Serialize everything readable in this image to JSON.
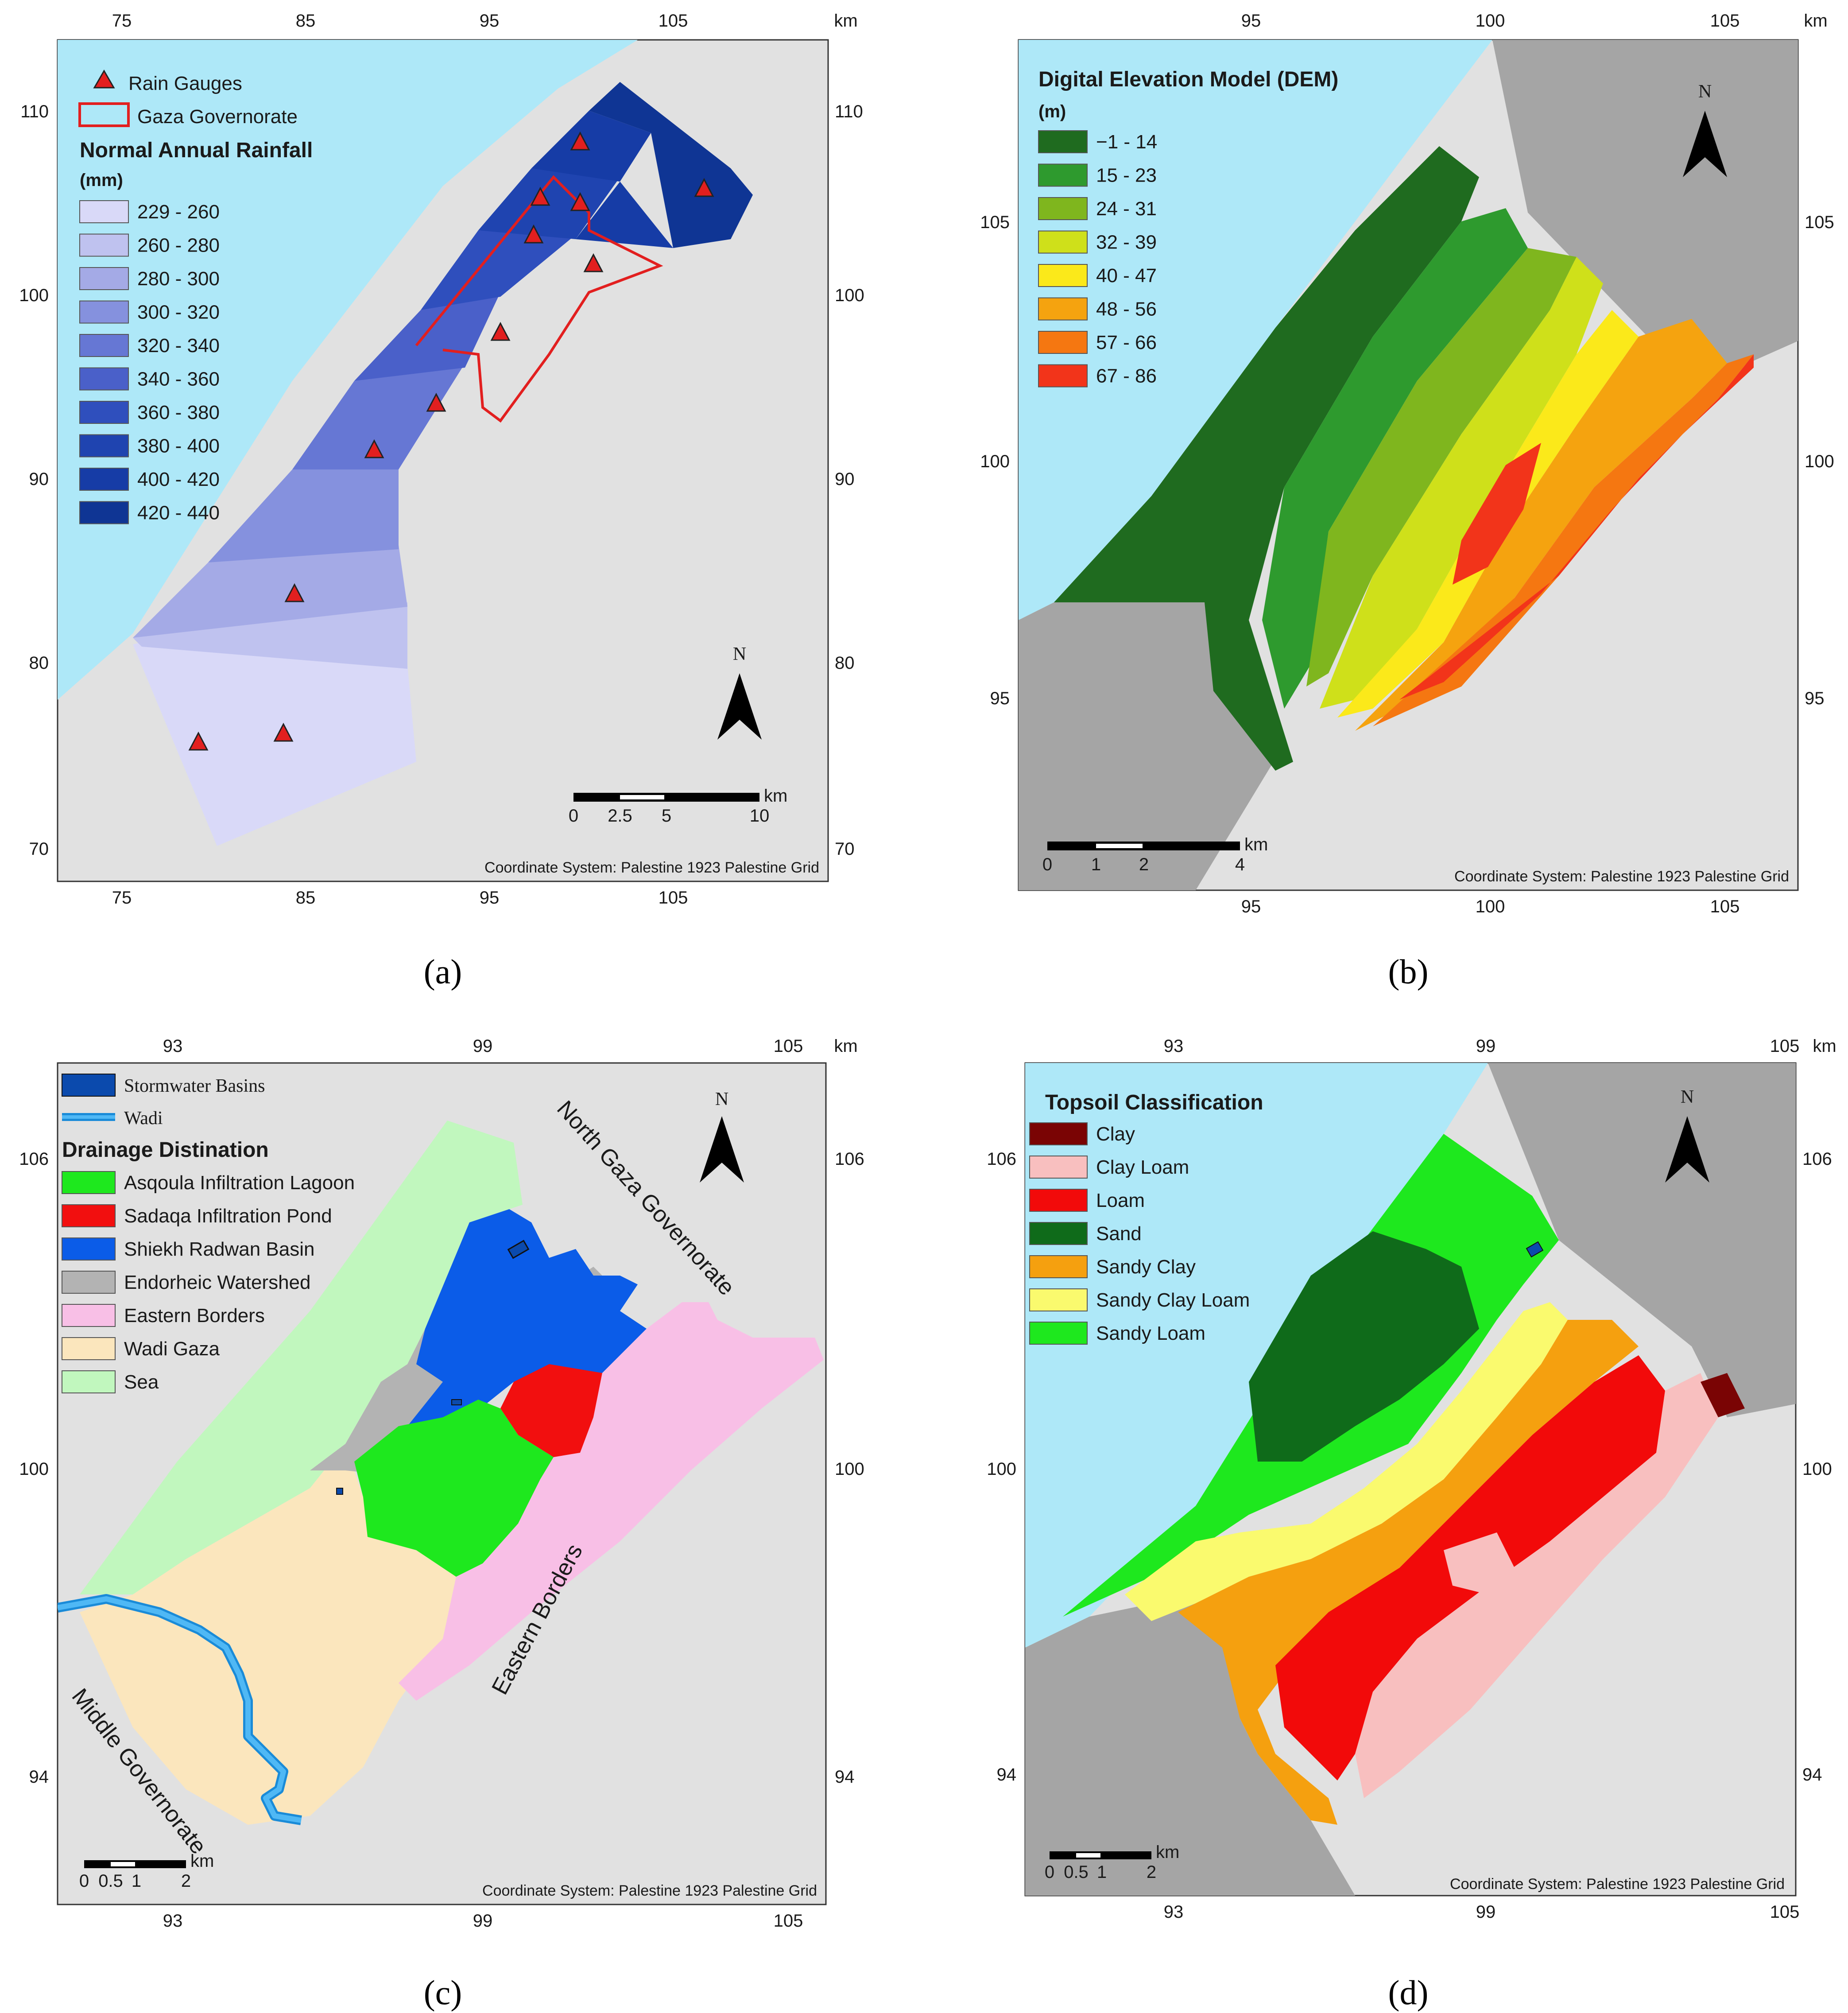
{
  "panels": {
    "a": {
      "caption": "(a)",
      "ticks_x": [
        "75",
        "85",
        "95",
        "105"
      ],
      "ticks_y": [
        "110",
        "100",
        "90",
        "80",
        "70"
      ],
      "unit_label": "km",
      "legend": {
        "gauges": "Rain Gauges",
        "governorate": "Gaza Governorate",
        "title": "Normal Annual Rainfall",
        "units": "(mm)",
        "classes": [
          {
            "label": "229 - 260",
            "color": "#d9d9f8"
          },
          {
            "label": "260 - 280",
            "color": "#bfc2ef"
          },
          {
            "label": "280 - 300",
            "color": "#a4aae6"
          },
          {
            "label": "300 - 320",
            "color": "#8591de"
          },
          {
            "label": "320 - 340",
            "color": "#6677d4"
          },
          {
            "label": "340 - 360",
            "color": "#4a60c9"
          },
          {
            "label": "360 - 380",
            "color": "#2f4fbd"
          },
          {
            "label": "380 - 400",
            "color": "#1f44b0"
          },
          {
            "label": "400 - 420",
            "color": "#163ca6"
          },
          {
            "label": "420 - 440",
            "color": "#0f3594"
          }
        ]
      },
      "scale_labels": [
        "0",
        "2.5",
        "5",
        "10"
      ],
      "scale_unit": "km",
      "north": "N",
      "coord_system": "Coordinate System: Palestine 1923 Palestine Grid"
    },
    "b": {
      "caption": "(b)",
      "ticks_x": [
        "95",
        "100",
        "105"
      ],
      "ticks_y": [
        "105",
        "100",
        "95"
      ],
      "unit_label": "km",
      "legend": {
        "title": "Digital Elevation Model (DEM)",
        "units": "(m)",
        "classes": [
          {
            "label": "−1 - 14",
            "color": "#1f6b1f"
          },
          {
            "label": "15 - 23",
            "color": "#2e9a2e"
          },
          {
            "label": "24 - 31",
            "color": "#7fb61e"
          },
          {
            "label": "32 - 39",
            "color": "#cfe01a"
          },
          {
            "label": "40 - 47",
            "color": "#fbe91a"
          },
          {
            "label": "48 - 56",
            "color": "#f5a30f"
          },
          {
            "label": "57 - 66",
            "color": "#f57711"
          },
          {
            "label": "67 - 86",
            "color": "#f2341a"
          }
        ]
      },
      "scale_labels": [
        "0",
        "1",
        "2",
        "4"
      ],
      "scale_unit": "km",
      "north": "N",
      "coord_system": "Coordinate System: Palestine 1923 Palestine Grid"
    },
    "c": {
      "caption": "(c)",
      "ticks_x": [
        "93",
        "99",
        "105"
      ],
      "ticks_y": [
        "106",
        "100",
        "94"
      ],
      "unit_label": "km",
      "legend": {
        "stormwater": "Stormwater Basins",
        "wadi": "Wadi",
        "title": "Drainage Distination",
        "classes": [
          {
            "label": "Asqoula Infiltration Lagoon",
            "color": "#1ee81e"
          },
          {
            "label": "Sadaqa Infiltration Pond",
            "color": "#f20f0f"
          },
          {
            "label": "Shiekh Radwan Basin",
            "color": "#0b5ce8"
          },
          {
            "label": "Endorheic Watershed",
            "color": "#b3b3b3"
          },
          {
            "label": "Eastern Borders",
            "color": "#f8bfe6"
          },
          {
            "label": "Wadi Gaza",
            "color": "#fbe6bd"
          },
          {
            "label": "Sea",
            "color": "#c1f7be"
          }
        ]
      },
      "regions": {
        "north": "North Gaza Governorate",
        "east": "Eastern Borders",
        "middle": "Middle Governorate"
      },
      "scale_labels": [
        "0",
        "0.5",
        "1",
        "2"
      ],
      "scale_unit": "km",
      "north": "N",
      "coord_system": "Coordinate System: Palestine 1923 Palestine Grid"
    },
    "d": {
      "caption": "(d)",
      "ticks_x": [
        "93",
        "99",
        "105"
      ],
      "ticks_y": [
        "106",
        "100",
        "94"
      ],
      "unit_label": "km",
      "legend": {
        "title": "Topsoil Classification",
        "classes": [
          {
            "label": "Clay",
            "color": "#7a0404"
          },
          {
            "label": "Clay Loam",
            "color": "#f8bfbf"
          },
          {
            "label": "Loam",
            "color": "#f20a0a"
          },
          {
            "label": "Sand",
            "color": "#0f6b1a"
          },
          {
            "label": "Sandy Clay",
            "color": "#f5a00f"
          },
          {
            "label": "Sandy Clay Loam",
            "color": "#fafa6e"
          },
          {
            "label": "Sandy Loam",
            "color": "#1ee81e"
          }
        ]
      },
      "scale_labels": [
        "0",
        "0.5",
        "1",
        "2"
      ],
      "scale_unit": "km",
      "north": "N",
      "coord_system": "Coordinate System: Palestine 1923 Palestine Grid"
    }
  },
  "colors": {
    "sea": "#aee8f8",
    "land": "#e1e1e1",
    "dark_land": "#a5a5a5",
    "gauge": "#e21f1f",
    "boundary": "#e21f1f"
  }
}
